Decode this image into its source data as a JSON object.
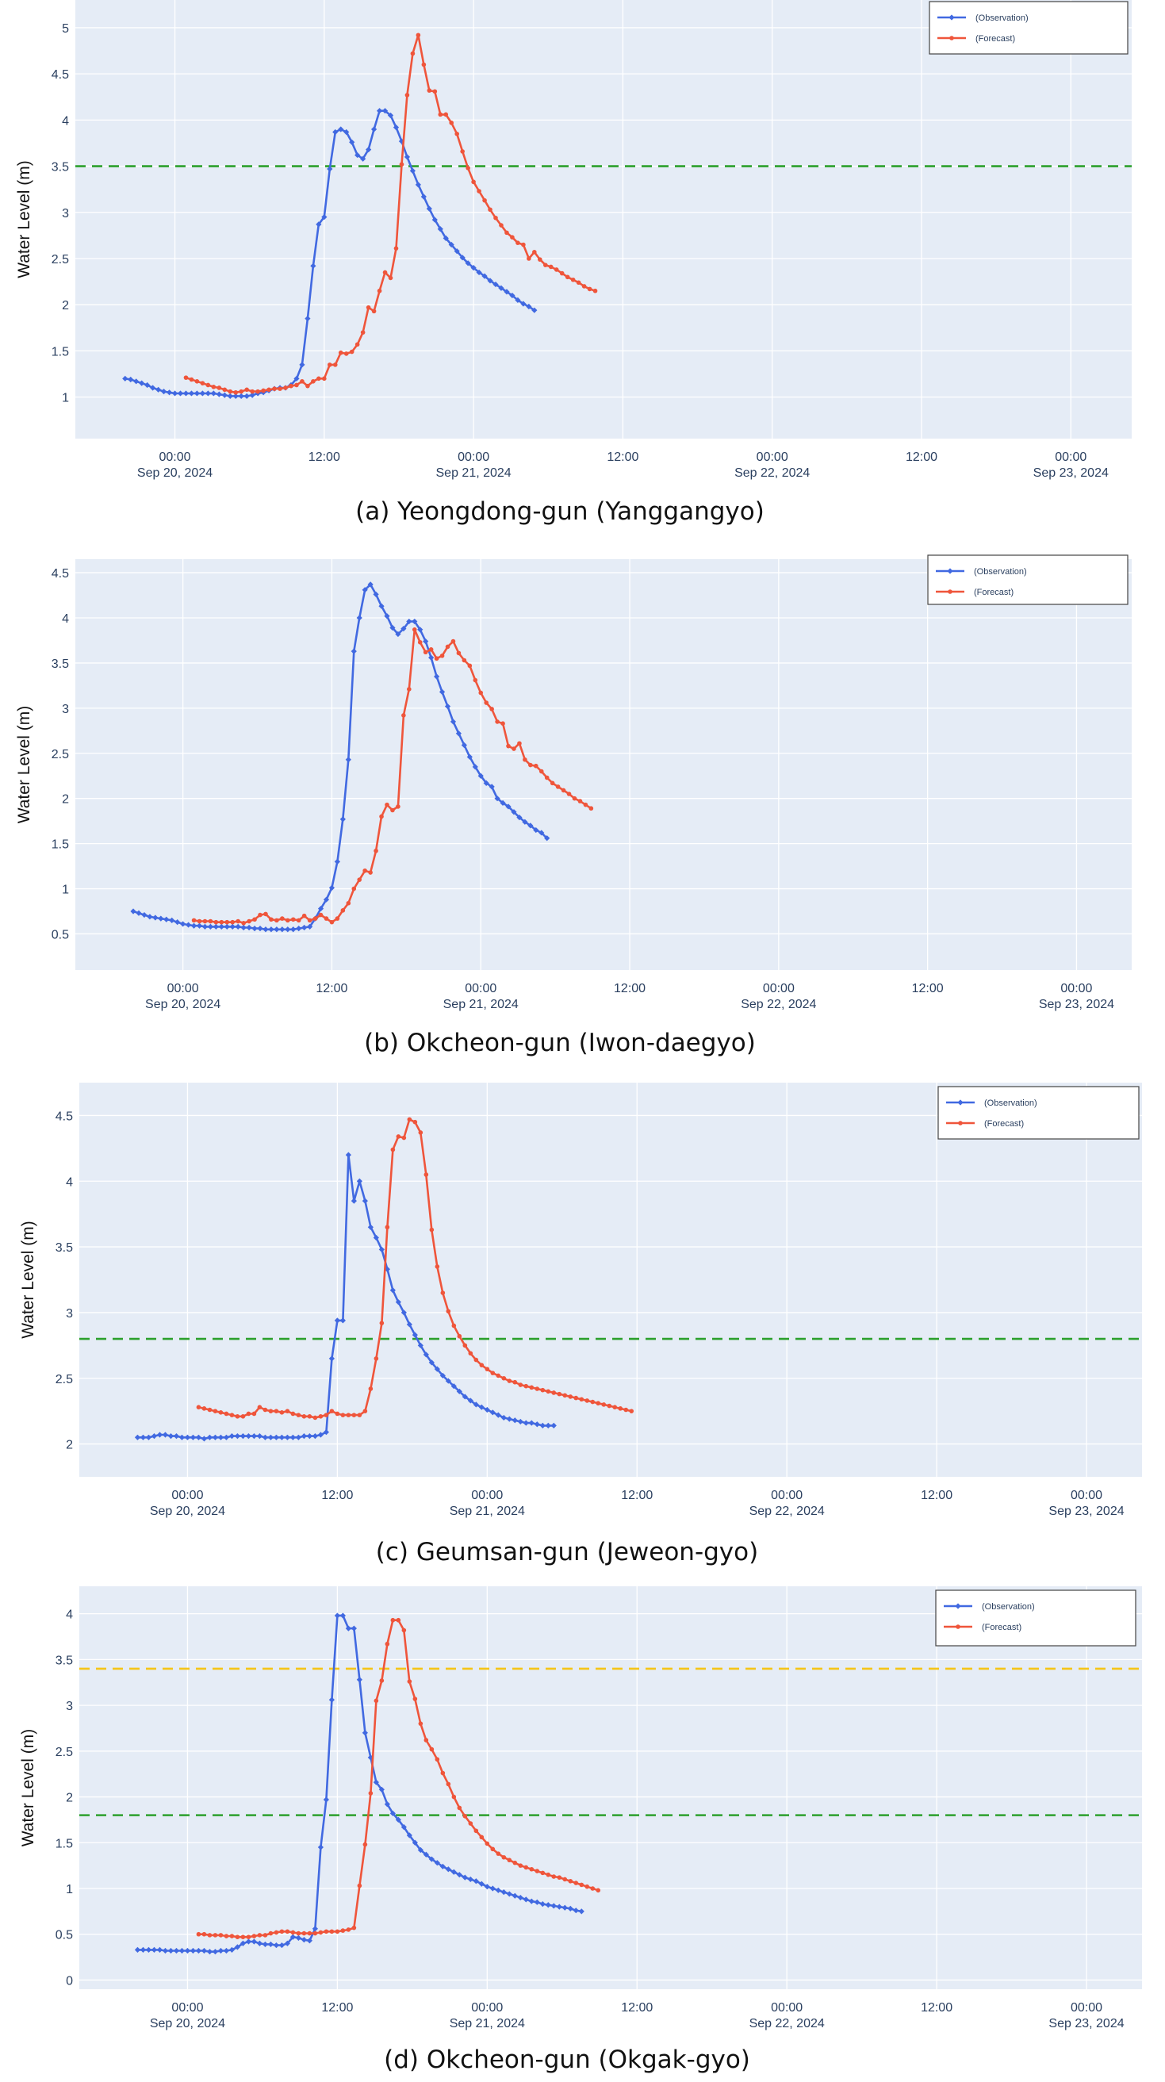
{
  "chart_data": [
    {
      "type": "line",
      "caption": "(a) Yeongdong-gun (Yanggangyo)",
      "ylabel": "Water Level (m)",
      "ylim": [
        0.55,
        5.3
      ],
      "yticks": [
        1,
        1.5,
        2,
        2.5,
        3,
        3.5,
        4,
        4.5,
        5
      ],
      "xlim": [
        -18,
        173
      ],
      "xticks": [
        {
          "x": 0,
          "line1": "00:00",
          "line2": "Sep 20, 2024"
        },
        {
          "x": 27,
          "line1": "12:00",
          "line2": ""
        },
        {
          "x": 54,
          "line1": "00:00",
          "line2": "Sep 21, 2024"
        },
        {
          "x": 81,
          "line1": "12:00",
          "line2": ""
        },
        {
          "x": 108,
          "line1": "00:00",
          "line2": "Sep 22, 2024"
        },
        {
          "x": 135,
          "line1": "12:00",
          "line2": ""
        },
        {
          "x": 162,
          "line1": "00:00",
          "line2": "Sep 23, 2024"
        }
      ],
      "thresholds": [
        {
          "value": 3.5,
          "color": "#2ca02c"
        }
      ],
      "legend": [
        "(Observation)",
        "(Forecast)"
      ],
      "series": [
        {
          "name": "(Observation)",
          "color": "#4169e1",
          "x0": -9,
          "values": [
            1.2,
            1.19,
            1.17,
            1.15,
            1.13,
            1.1,
            1.08,
            1.06,
            1.05,
            1.04,
            1.04,
            1.04,
            1.04,
            1.04,
            1.04,
            1.04,
            1.04,
            1.03,
            1.02,
            1.01,
            1.01,
            1.01,
            1.01,
            1.02,
            1.04,
            1.05,
            1.07,
            1.09,
            1.1,
            1.1,
            1.13,
            1.2,
            1.35,
            1.85,
            2.42,
            2.87,
            2.95,
            3.47,
            3.87,
            3.9,
            3.87,
            3.76,
            3.62,
            3.58,
            3.68,
            3.9,
            4.1,
            4.1,
            4.05,
            3.92,
            3.77,
            3.6,
            3.45,
            3.3,
            3.17,
            3.04,
            2.92,
            2.82,
            2.72,
            2.65,
            2.58,
            2.51,
            2.45,
            2.4,
            2.35,
            2.31,
            2.26,
            2.22,
            2.18,
            2.14,
            2.1,
            2.05,
            2.01,
            1.98,
            1.94
          ]
        },
        {
          "name": "(Forecast)",
          "color": "#ef553b",
          "x0": 2,
          "values": [
            1.21,
            1.19,
            1.17,
            1.15,
            1.13,
            1.11,
            1.1,
            1.08,
            1.06,
            1.05,
            1.06,
            1.08,
            1.06,
            1.06,
            1.07,
            1.08,
            1.09,
            1.09,
            1.1,
            1.12,
            1.13,
            1.17,
            1.12,
            1.17,
            1.2,
            1.2,
            1.35,
            1.35,
            1.48,
            1.47,
            1.49,
            1.57,
            1.7,
            1.97,
            1.93,
            2.15,
            2.35,
            2.29,
            2.61,
            3.52,
            4.27,
            4.72,
            4.92,
            4.6,
            4.32,
            4.31,
            4.06,
            4.06,
            3.97,
            3.85,
            3.66,
            3.48,
            3.33,
            3.23,
            3.13,
            3.03,
            2.94,
            2.86,
            2.78,
            2.73,
            2.67,
            2.65,
            2.5,
            2.57,
            2.49,
            2.43,
            2.41,
            2.38,
            2.34,
            2.3,
            2.27,
            2.24,
            2.2,
            2.17,
            2.15
          ]
        }
      ]
    },
    {
      "type": "line",
      "caption": "(b) Okcheon-gun (Iwon-daegyo)",
      "ylabel": "Water Level (m)",
      "ylim": [
        0.1,
        4.65
      ],
      "yticks": [
        0.5,
        1,
        1.5,
        2,
        2.5,
        3,
        3.5,
        4,
        4.5
      ],
      "xlim": [
        -19.5,
        172
      ],
      "xticks": [
        {
          "x": 0,
          "line1": "00:00",
          "line2": "Sep 20, 2024"
        },
        {
          "x": 27,
          "line1": "12:00",
          "line2": ""
        },
        {
          "x": 54,
          "line1": "00:00",
          "line2": "Sep 21, 2024"
        },
        {
          "x": 81,
          "line1": "12:00",
          "line2": ""
        },
        {
          "x": 108,
          "line1": "00:00",
          "line2": "Sep 22, 2024"
        },
        {
          "x": 135,
          "line1": "12:00",
          "line2": ""
        },
        {
          "x": 162,
          "line1": "00:00",
          "line2": "Sep 23, 2024"
        }
      ],
      "thresholds": [],
      "legend": [
        "(Observation)",
        "(Forecast)"
      ],
      "series": [
        {
          "name": "(Observation)",
          "color": "#4169e1",
          "x0": -9,
          "values": [
            0.75,
            0.73,
            0.71,
            0.69,
            0.68,
            0.67,
            0.66,
            0.65,
            0.63,
            0.61,
            0.6,
            0.59,
            0.59,
            0.58,
            0.58,
            0.58,
            0.58,
            0.58,
            0.58,
            0.58,
            0.57,
            0.57,
            0.56,
            0.56,
            0.55,
            0.55,
            0.55,
            0.55,
            0.55,
            0.55,
            0.56,
            0.57,
            0.58,
            0.67,
            0.78,
            0.88,
            1.01,
            1.3,
            1.77,
            2.43,
            3.63,
            4.0,
            4.31,
            4.37,
            4.26,
            4.13,
            4.02,
            3.89,
            3.82,
            3.88,
            3.96,
            3.96,
            3.87,
            3.74,
            3.56,
            3.35,
            3.18,
            3.02,
            2.85,
            2.72,
            2.59,
            2.46,
            2.35,
            2.25,
            2.17,
            2.13,
            2.0,
            1.95,
            1.91,
            1.85,
            1.79,
            1.74,
            1.7,
            1.65,
            1.62,
            1.56
          ]
        },
        {
          "name": "(Forecast)",
          "color": "#ef553b",
          "x0": 2,
          "values": [
            0.65,
            0.64,
            0.64,
            0.64,
            0.63,
            0.63,
            0.63,
            0.63,
            0.64,
            0.62,
            0.64,
            0.66,
            0.71,
            0.72,
            0.66,
            0.65,
            0.67,
            0.65,
            0.66,
            0.65,
            0.7,
            0.65,
            0.67,
            0.71,
            0.67,
            0.63,
            0.67,
            0.76,
            0.84,
            1.0,
            1.1,
            1.2,
            1.18,
            1.42,
            1.8,
            1.93,
            1.87,
            1.91,
            2.92,
            3.21,
            3.87,
            3.73,
            3.62,
            3.65,
            3.55,
            3.58,
            3.68,
            3.74,
            3.61,
            3.53,
            3.47,
            3.31,
            3.17,
            3.06,
            2.99,
            2.85,
            2.83,
            2.58,
            2.55,
            2.61,
            2.43,
            2.37,
            2.36,
            2.3,
            2.23,
            2.17,
            2.13,
            2.09,
            2.05,
            2.0,
            1.97,
            1.93,
            1.89
          ]
        }
      ]
    },
    {
      "type": "line",
      "caption": "(c) Geumsan-gun (Jeweon-gyo)",
      "ylabel": "Water Level (m)",
      "ylim": [
        1.75,
        4.75
      ],
      "yticks": [
        2,
        2.5,
        3,
        3.5,
        4,
        4.5
      ],
      "xlim": [
        -19.5,
        172
      ],
      "xticks": [
        {
          "x": 0,
          "line1": "00:00",
          "line2": "Sep 20, 2024"
        },
        {
          "x": 27,
          "line1": "12:00",
          "line2": ""
        },
        {
          "x": 54,
          "line1": "00:00",
          "line2": "Sep 21, 2024"
        },
        {
          "x": 81,
          "line1": "12:00",
          "line2": ""
        },
        {
          "x": 108,
          "line1": "00:00",
          "line2": "Sep 22, 2024"
        },
        {
          "x": 135,
          "line1": "12:00",
          "line2": ""
        },
        {
          "x": 162,
          "line1": "00:00",
          "line2": "Sep 23, 2024"
        }
      ],
      "thresholds": [
        {
          "value": 2.8,
          "color": "#2ca02c"
        }
      ],
      "legend": [
        "(Observation)",
        "(Forecast)"
      ],
      "series": [
        {
          "name": "(Observation)",
          "color": "#4169e1",
          "x0": -9,
          "values": [
            2.05,
            2.05,
            2.05,
            2.06,
            2.07,
            2.07,
            2.06,
            2.06,
            2.05,
            2.05,
            2.05,
            2.05,
            2.04,
            2.05,
            2.05,
            2.05,
            2.05,
            2.06,
            2.06,
            2.06,
            2.06,
            2.06,
            2.06,
            2.05,
            2.05,
            2.05,
            2.05,
            2.05,
            2.05,
            2.05,
            2.06,
            2.06,
            2.06,
            2.07,
            2.09,
            2.65,
            2.94,
            2.94,
            4.2,
            3.85,
            4.0,
            3.85,
            3.65,
            3.57,
            3.48,
            3.33,
            3.17,
            3.08,
            3.0,
            2.91,
            2.83,
            2.75,
            2.68,
            2.62,
            2.57,
            2.52,
            2.48,
            2.44,
            2.4,
            2.36,
            2.33,
            2.3,
            2.28,
            2.26,
            2.24,
            2.22,
            2.2,
            2.19,
            2.18,
            2.17,
            2.16,
            2.16,
            2.15,
            2.14,
            2.14,
            2.14
          ]
        },
        {
          "name": "(Forecast)",
          "color": "#ef553b",
          "x0": 2,
          "values": [
            2.28,
            2.27,
            2.26,
            2.25,
            2.24,
            2.23,
            2.22,
            2.21,
            2.21,
            2.23,
            2.23,
            2.28,
            2.26,
            2.25,
            2.25,
            2.24,
            2.25,
            2.23,
            2.22,
            2.21,
            2.21,
            2.2,
            2.21,
            2.22,
            2.25,
            2.23,
            2.22,
            2.22,
            2.22,
            2.22,
            2.25,
            2.42,
            2.65,
            2.92,
            3.65,
            4.24,
            4.34,
            4.33,
            4.47,
            4.45,
            4.37,
            4.05,
            3.63,
            3.35,
            3.15,
            3.01,
            2.9,
            2.82,
            2.75,
            2.69,
            2.64,
            2.6,
            2.57,
            2.54,
            2.52,
            2.5,
            2.48,
            2.47,
            2.45,
            2.44,
            2.43,
            2.42,
            2.41,
            2.4,
            2.39,
            2.38,
            2.37,
            2.36,
            2.35,
            2.34,
            2.33,
            2.32,
            2.31,
            2.3,
            2.29,
            2.28,
            2.27,
            2.26,
            2.25
          ]
        }
      ]
    },
    {
      "type": "line",
      "caption": "(d) Okcheon-gun (Okgak-gyo)",
      "ylabel": "Water Level (m)",
      "ylim": [
        -0.1,
        4.3
      ],
      "yticks": [
        0,
        0.5,
        1,
        1.5,
        2,
        2.5,
        3,
        3.5,
        4
      ],
      "xlim": [
        -19.5,
        172
      ],
      "xticks": [
        {
          "x": 0,
          "line1": "00:00",
          "line2": "Sep 20, 2024"
        },
        {
          "x": 27,
          "line1": "12:00",
          "line2": ""
        },
        {
          "x": 54,
          "line1": "00:00",
          "line2": "Sep 21, 2024"
        },
        {
          "x": 81,
          "line1": "12:00",
          "line2": ""
        },
        {
          "x": 108,
          "line1": "00:00",
          "line2": "Sep 22, 2024"
        },
        {
          "x": 135,
          "line1": "12:00",
          "line2": ""
        },
        {
          "x": 162,
          "line1": "00:00",
          "line2": "Sep 23, 2024"
        }
      ],
      "thresholds": [
        {
          "value": 3.4,
          "color": "#f5c518"
        },
        {
          "value": 1.8,
          "color": "#2ca02c"
        }
      ],
      "legend": [
        "(Observation)",
        "(Forecast)"
      ],
      "series": [
        {
          "name": "(Observation)",
          "color": "#4169e1",
          "x0": -9,
          "values": [
            0.33,
            0.33,
            0.33,
            0.33,
            0.33,
            0.32,
            0.32,
            0.32,
            0.32,
            0.32,
            0.32,
            0.32,
            0.32,
            0.31,
            0.31,
            0.32,
            0.32,
            0.33,
            0.36,
            0.4,
            0.42,
            0.42,
            0.4,
            0.39,
            0.39,
            0.38,
            0.38,
            0.4,
            0.47,
            0.46,
            0.44,
            0.43,
            0.56,
            1.45,
            1.97,
            3.06,
            3.98,
            3.98,
            3.84,
            3.84,
            3.28,
            2.7,
            2.43,
            2.16,
            2.08,
            1.92,
            1.82,
            1.75,
            1.67,
            1.58,
            1.5,
            1.42,
            1.37,
            1.32,
            1.28,
            1.24,
            1.21,
            1.18,
            1.15,
            1.12,
            1.1,
            1.08,
            1.05,
            1.02,
            1.0,
            0.98,
            0.96,
            0.94,
            0.92,
            0.9,
            0.88,
            0.86,
            0.85,
            0.83,
            0.82,
            0.81,
            0.8,
            0.79,
            0.78,
            0.76,
            0.75
          ]
        },
        {
          "name": "(Forecast)",
          "color": "#ef553b",
          "x0": 2,
          "values": [
            0.5,
            0.5,
            0.49,
            0.49,
            0.49,
            0.48,
            0.48,
            0.47,
            0.47,
            0.47,
            0.48,
            0.49,
            0.49,
            0.51,
            0.52,
            0.53,
            0.53,
            0.52,
            0.51,
            0.51,
            0.51,
            0.51,
            0.52,
            0.53,
            0.53,
            0.53,
            0.54,
            0.55,
            0.57,
            1.03,
            1.48,
            2.04,
            3.05,
            3.27,
            3.67,
            3.93,
            3.93,
            3.82,
            3.26,
            3.07,
            2.8,
            2.62,
            2.52,
            2.41,
            2.26,
            2.14,
            2.0,
            1.88,
            1.79,
            1.71,
            1.63,
            1.56,
            1.49,
            1.43,
            1.38,
            1.34,
            1.31,
            1.28,
            1.25,
            1.23,
            1.21,
            1.19,
            1.17,
            1.15,
            1.13,
            1.12,
            1.1,
            1.08,
            1.06,
            1.04,
            1.02,
            1.0,
            0.98
          ]
        }
      ]
    }
  ]
}
